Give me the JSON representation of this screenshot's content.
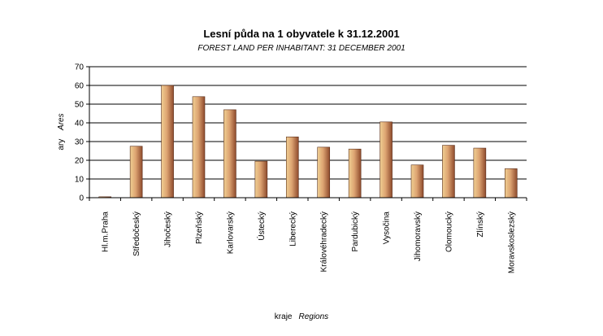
{
  "chart_data": {
    "type": "bar",
    "title": "Lesní půda na 1 obyvatele k 31.12.2001",
    "subtitle": "FOREST LAND PER INHABITANT: 31 DECEMBER 2001",
    "ylabel": {
      "cs": "ary",
      "en": "Ares"
    },
    "xlabel": {
      "cs": "kraje",
      "en": "Regions"
    },
    "ylim": [
      0,
      70
    ],
    "yticks": [
      0,
      10,
      20,
      30,
      40,
      50,
      60,
      70
    ],
    "grid": true,
    "legend": "none",
    "bar_color_light": "#f0cf92",
    "bar_color_dark": "#8e4a2c",
    "categories": [
      "Hl.m.Praha",
      "Středočeský",
      "Jihočeský",
      "Plzeňský",
      "Karlovarský",
      "Ústecký",
      "Liberecký",
      "Královéhradecký",
      "Pardubický",
      "Vysočina",
      "Jihomoravský",
      "Olomoucký",
      "Zlínský",
      "Moravskoslezský"
    ],
    "values": [
      0.5,
      27.5,
      60,
      54,
      47,
      19.5,
      32.5,
      27,
      26,
      40.5,
      17.5,
      28,
      26.5,
      15.5
    ]
  }
}
